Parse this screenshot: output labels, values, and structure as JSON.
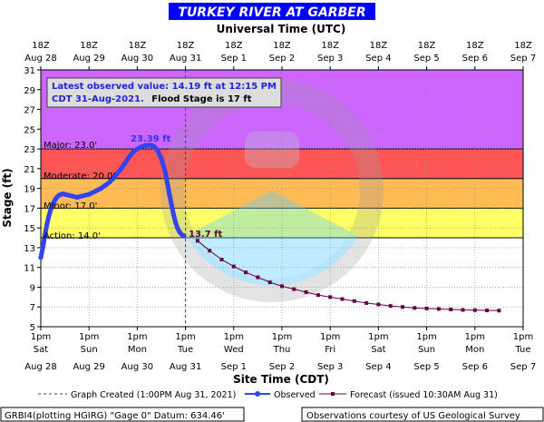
{
  "title": "TURKEY RIVER AT GARBER",
  "top_axis_title": "Universal Time (UTC)",
  "x_axis_title": "Site Time (CDT)",
  "y_axis_title": "Stage (ft)",
  "info_box": {
    "line1": "Latest observed value: 14.19 ft at 12:15 PM",
    "line2a": "CDT 31-Aug-2021.",
    "line2b": "Flood Stage is 17 ft"
  },
  "bands": {
    "major": "Major: 23.0'",
    "moderate": "Moderate: 20.0'",
    "minor": "Minor: 17.0'",
    "action": "Action: 14.0'"
  },
  "peak_label": "23.39 ft",
  "forecast_start_label": "13.7 ft",
  "legend": {
    "created": "Graph Created (1:00PM Aug 31, 2021)",
    "observed": "Observed",
    "forecast": "Forecast (issued 10:30AM Aug 31)"
  },
  "footer": {
    "left": "GRBI4(plotting HGIRG) \"Gage 0\" Datum: 634.46'",
    "right": "Observations courtesy of US Geological Survey"
  },
  "colors": {
    "major": "#cc66ff",
    "moderate": "#ff5555",
    "minor": "#ffbb55",
    "action": "#ffff66",
    "observed": "#3344ee",
    "forecast": "#660044",
    "title_bar": "#0000ff"
  },
  "chart_data": {
    "type": "line",
    "title": "TURKEY RIVER AT GARBER",
    "xlabel": "Site Time (CDT)",
    "ylabel": "Stage (ft)",
    "ylim": [
      5,
      31
    ],
    "yticks": [
      5,
      7,
      9,
      11,
      13,
      15,
      17,
      19,
      21,
      23,
      25,
      27,
      29,
      31
    ],
    "xlim": [
      0,
      240
    ],
    "x_unit": "hours after 1pm CDT Aug 28",
    "bottom_ticks": [
      {
        "h": 0,
        "top": "1pm",
        "bottom": "Sat",
        "date": "Aug 28"
      },
      {
        "h": 24,
        "top": "1pm",
        "bottom": "Sun",
        "date": "Aug 29"
      },
      {
        "h": 48,
        "top": "1pm",
        "bottom": "Mon",
        "date": "Aug 30"
      },
      {
        "h": 72,
        "top": "1pm",
        "bottom": "Tue",
        "date": "Aug 31"
      },
      {
        "h": 96,
        "top": "1pm",
        "bottom": "Wed",
        "date": "Sep 1"
      },
      {
        "h": 120,
        "top": "1pm",
        "bottom": "Thu",
        "date": "Sep 2"
      },
      {
        "h": 144,
        "top": "1pm",
        "bottom": "Fri",
        "date": "Sep 3"
      },
      {
        "h": 168,
        "top": "1pm",
        "bottom": "Sat",
        "date": "Sep 4"
      },
      {
        "h": 192,
        "top": "1pm",
        "bottom": "Sun",
        "date": "Sep 5"
      },
      {
        "h": 216,
        "top": "1pm",
        "bottom": "Mon",
        "date": "Sep 6"
      },
      {
        "h": 240,
        "top": "1pm",
        "bottom": "Tue",
        "date": "Sep 7"
      }
    ],
    "top_ticks": [
      {
        "h": 0,
        "time": "18Z",
        "date": "Aug 28"
      },
      {
        "h": 24,
        "time": "18Z",
        "date": "Aug 29"
      },
      {
        "h": 48,
        "time": "18Z",
        "date": "Aug 30"
      },
      {
        "h": 72,
        "time": "18Z",
        "date": "Aug 31"
      },
      {
        "h": 96,
        "time": "18Z",
        "date": "Sep 1"
      },
      {
        "h": 120,
        "time": "18Z",
        "date": "Sep 2"
      },
      {
        "h": 144,
        "time": "18Z",
        "date": "Sep 3"
      },
      {
        "h": 168,
        "time": "18Z",
        "date": "Sep 4"
      },
      {
        "h": 192,
        "time": "18Z",
        "date": "Sep 5"
      },
      {
        "h": 216,
        "time": "18Z",
        "date": "Sep 6"
      },
      {
        "h": 240,
        "time": "18Z",
        "date": "Sep 7"
      }
    ],
    "flood_categories": [
      {
        "name": "Action",
        "stage": 14.0
      },
      {
        "name": "Minor",
        "stage": 17.0
      },
      {
        "name": "Moderate",
        "stage": 20.0
      },
      {
        "name": "Major",
        "stage": 23.0
      }
    ],
    "graph_created_h": 72,
    "series": [
      {
        "name": "Observed",
        "points": [
          [
            0,
            12.0
          ],
          [
            1,
            13.0
          ],
          [
            2,
            14.2
          ],
          [
            3,
            15.3
          ],
          [
            4,
            16.2
          ],
          [
            5,
            16.9
          ],
          [
            6,
            17.4
          ],
          [
            7,
            17.8
          ],
          [
            8,
            18.1
          ],
          [
            9,
            18.3
          ],
          [
            10,
            18.4
          ],
          [
            11,
            18.45
          ],
          [
            12,
            18.4
          ],
          [
            14,
            18.3
          ],
          [
            16,
            18.2
          ],
          [
            18,
            18.1
          ],
          [
            20,
            18.2
          ],
          [
            22,
            18.3
          ],
          [
            24,
            18.4
          ],
          [
            26,
            18.6
          ],
          [
            28,
            18.8
          ],
          [
            30,
            19.0
          ],
          [
            32,
            19.3
          ],
          [
            34,
            19.6
          ],
          [
            36,
            20.0
          ],
          [
            38,
            20.5
          ],
          [
            40,
            21.0
          ],
          [
            42,
            21.6
          ],
          [
            44,
            22.2
          ],
          [
            46,
            22.7
          ],
          [
            48,
            23.0
          ],
          [
            50,
            23.2
          ],
          [
            52,
            23.35
          ],
          [
            54,
            23.39
          ],
          [
            56,
            23.3
          ],
          [
            58,
            22.9
          ],
          [
            60,
            22.0
          ],
          [
            62,
            20.6
          ],
          [
            63,
            19.5
          ],
          [
            64,
            18.4
          ],
          [
            65,
            17.4
          ],
          [
            66,
            16.4
          ],
          [
            67,
            15.6
          ],
          [
            68,
            15.0
          ],
          [
            69,
            14.6
          ],
          [
            70,
            14.35
          ],
          [
            71.25,
            14.19
          ]
        ]
      },
      {
        "name": "Forecast",
        "points": [
          [
            78,
            13.7
          ],
          [
            84,
            12.7
          ],
          [
            90,
            11.8
          ],
          [
            96,
            11.1
          ],
          [
            102,
            10.5
          ],
          [
            108,
            10.0
          ],
          [
            114,
            9.5
          ],
          [
            120,
            9.1
          ],
          [
            126,
            8.8
          ],
          [
            132,
            8.5
          ],
          [
            138,
            8.2
          ],
          [
            144,
            8.0
          ],
          [
            150,
            7.8
          ],
          [
            156,
            7.6
          ],
          [
            162,
            7.4
          ],
          [
            168,
            7.25
          ],
          [
            174,
            7.1
          ],
          [
            180,
            7.0
          ],
          [
            186,
            6.9
          ],
          [
            192,
            6.85
          ],
          [
            198,
            6.8
          ],
          [
            204,
            6.75
          ],
          [
            210,
            6.7
          ],
          [
            216,
            6.68
          ],
          [
            222,
            6.65
          ],
          [
            228,
            6.63
          ]
        ]
      }
    ]
  }
}
